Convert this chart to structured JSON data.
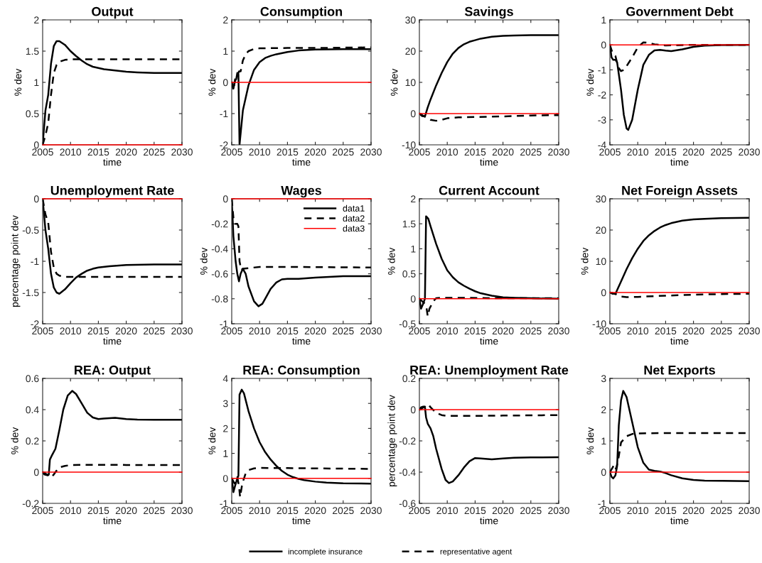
{
  "chart_data": [
    {
      "type": "line",
      "title": "Output",
      "xlabel": "time",
      "ylabel": "% dev",
      "xlim": [
        2005,
        2030
      ],
      "xticks": [
        2005,
        2010,
        2015,
        2020,
        2025,
        2030
      ],
      "ylim": [
        0,
        2
      ],
      "yticks": [
        0,
        0.5,
        1,
        1.5,
        2
      ],
      "series": [
        {
          "color": "#000000",
          "line_style": "solid",
          "x": [
            2005,
            2005.5,
            2006,
            2006.5,
            2007,
            2007.5,
            2008,
            2009,
            2010,
            2011,
            2012,
            2013,
            2014,
            2015,
            2016,
            2018,
            2020,
            2022,
            2025,
            2030
          ],
          "values": [
            0,
            0.55,
            0.8,
            1.3,
            1.58,
            1.66,
            1.66,
            1.6,
            1.5,
            1.42,
            1.35,
            1.29,
            1.25,
            1.23,
            1.21,
            1.19,
            1.17,
            1.16,
            1.15,
            1.15
          ]
        },
        {
          "color": "#000000",
          "line_style": "dashed",
          "x": [
            2005,
            2005.5,
            2006,
            2006.5,
            2007,
            2007.5,
            2008,
            2009,
            2010,
            2020,
            2030
          ],
          "values": [
            0,
            0.15,
            0.35,
            0.8,
            1.15,
            1.28,
            1.33,
            1.36,
            1.37,
            1.37,
            1.37
          ]
        },
        {
          "color": "#ff0000",
          "line_style": "solid",
          "x": [
            2005,
            2030
          ],
          "values": [
            0,
            0
          ]
        }
      ]
    },
    {
      "type": "line",
      "title": "Consumption",
      "xlabel": "time",
      "ylabel": "% dev",
      "xlim": [
        2005,
        2030
      ],
      "xticks": [
        2005,
        2010,
        2015,
        2020,
        2025,
        2030
      ],
      "ylim": [
        -2,
        2
      ],
      "yticks": [
        -2,
        -1,
        0,
        1,
        2
      ],
      "series": [
        {
          "color": "#000000",
          "line_style": "solid",
          "x": [
            2005,
            2005.3,
            2005.6,
            2005.8,
            2006,
            2006.2,
            2006.4,
            2007,
            2008,
            2009,
            2010,
            2011,
            2012,
            2013,
            2015,
            2017,
            2020,
            2025,
            2030
          ],
          "values": [
            0,
            -0.2,
            0.05,
            0.1,
            0.3,
            0.25,
            -2,
            -0.9,
            -0.1,
            0.4,
            0.65,
            0.78,
            0.85,
            0.9,
            0.97,
            1.02,
            1.05,
            1.06,
            1.06
          ]
        },
        {
          "color": "#000000",
          "line_style": "dashed",
          "x": [
            2005,
            2005.3,
            2005.6,
            2006,
            2006.3,
            2006.6,
            2007,
            2007.5,
            2008,
            2009,
            2010,
            2015,
            2020,
            2030
          ],
          "values": [
            0,
            -0.25,
            0.1,
            0.2,
            0.35,
            0.35,
            0.7,
            0.9,
            1.0,
            1.07,
            1.09,
            1.1,
            1.1,
            1.12
          ]
        },
        {
          "color": "#ff0000",
          "line_style": "solid",
          "x": [
            2005,
            2030
          ],
          "values": [
            0,
            0
          ]
        }
      ]
    },
    {
      "type": "line",
      "title": "Savings",
      "xlabel": "time",
      "ylabel": "% dev",
      "xlim": [
        2005,
        2030
      ],
      "xticks": [
        2005,
        2010,
        2015,
        2020,
        2025,
        2030
      ],
      "ylim": [
        -10,
        30
      ],
      "yticks": [
        -10,
        0,
        10,
        20,
        30
      ],
      "series": [
        {
          "color": "#000000",
          "line_style": "solid",
          "x": [
            2005,
            2005.5,
            2006,
            2006.5,
            2007,
            2008,
            2009,
            2010,
            2011,
            2012,
            2013,
            2014,
            2015,
            2016,
            2018,
            2020,
            2022,
            2025,
            2030
          ],
          "values": [
            0,
            -0.8,
            -0.9,
            2,
            4.5,
            9,
            13,
            16.5,
            19.2,
            21,
            22.2,
            23,
            23.5,
            24,
            24.6,
            24.9,
            25,
            25.1,
            25.1
          ]
        },
        {
          "color": "#000000",
          "line_style": "dashed",
          "x": [
            2005,
            2006,
            2007,
            2008,
            2009,
            2010,
            2012,
            2015,
            2020,
            2025,
            2030
          ],
          "values": [
            0,
            -1,
            -2,
            -2.3,
            -2,
            -1.5,
            -1.2,
            -1.1,
            -0.9,
            -0.6,
            -0.5
          ]
        },
        {
          "color": "#ff0000",
          "line_style": "solid",
          "x": [
            2005,
            2030
          ],
          "values": [
            0,
            0
          ]
        }
      ]
    },
    {
      "type": "line",
      "title": "Government Debt",
      "xlabel": "time",
      "ylabel": "% dev",
      "xlim": [
        2005,
        2030
      ],
      "xticks": [
        2005,
        2010,
        2015,
        2020,
        2025,
        2030
      ],
      "ylim": [
        -4,
        1
      ],
      "yticks": [
        -4,
        -3,
        -2,
        -1,
        0,
        1
      ],
      "series": [
        {
          "color": "#000000",
          "line_style": "solid",
          "x": [
            2005,
            2005.3,
            2005.6,
            2006,
            2006.3,
            2007,
            2007.5,
            2008,
            2008.3,
            2009,
            2010,
            2011,
            2012,
            2013,
            2014,
            2015,
            2016,
            2018,
            2020,
            2022,
            2025,
            2030
          ],
          "values": [
            0,
            -0.5,
            -0.6,
            -0.6,
            -0.7,
            -1.8,
            -2.8,
            -3.35,
            -3.4,
            -3.0,
            -1.8,
            -0.8,
            -0.4,
            -0.22,
            -0.2,
            -0.23,
            -0.25,
            -0.18,
            -0.08,
            -0.03,
            -0.01,
            0
          ]
        },
        {
          "color": "#000000",
          "line_style": "dashed",
          "x": [
            2005,
            2005.5,
            2006,
            2006.5,
            2007,
            2007.5,
            2008,
            2009,
            2010,
            2011,
            2012,
            2013,
            2015,
            2020,
            2030
          ],
          "values": [
            0,
            -0.35,
            -0.45,
            -0.9,
            -1.05,
            -1.0,
            -0.85,
            -0.5,
            -0.1,
            0.1,
            0.08,
            0.02,
            -0.02,
            0,
            0
          ]
        },
        {
          "color": "#ff0000",
          "line_style": "solid",
          "x": [
            2005,
            2030
          ],
          "values": [
            0,
            0
          ]
        }
      ]
    },
    {
      "type": "line",
      "title": "Unemployment Rate",
      "xlabel": "time",
      "ylabel": "percentage point dev",
      "xlim": [
        2005,
        2030
      ],
      "xticks": [
        2005,
        2010,
        2015,
        2020,
        2025,
        2030
      ],
      "ylim": [
        -2,
        0
      ],
      "yticks": [
        -2,
        -1.5,
        -1,
        -0.5,
        0
      ],
      "series": [
        {
          "color": "#000000",
          "line_style": "solid",
          "x": [
            2005,
            2005.5,
            2006,
            2006.5,
            2007,
            2007.5,
            2008,
            2009,
            2010,
            2011,
            2012,
            2013,
            2014,
            2015,
            2017,
            2020,
            2025,
            2030
          ],
          "values": [
            0,
            -0.5,
            -0.8,
            -1.2,
            -1.42,
            -1.5,
            -1.52,
            -1.45,
            -1.35,
            -1.26,
            -1.2,
            -1.15,
            -1.12,
            -1.1,
            -1.08,
            -1.06,
            -1.05,
            -1.05
          ]
        },
        {
          "color": "#000000",
          "line_style": "dashed",
          "x": [
            2005,
            2005.5,
            2006,
            2006.5,
            2007,
            2007.5,
            2008,
            2009,
            2010,
            2030
          ],
          "values": [
            0,
            -0.25,
            -0.38,
            -0.85,
            -1.1,
            -1.2,
            -1.23,
            -1.25,
            -1.25,
            -1.25
          ]
        },
        {
          "color": "#ff0000",
          "line_style": "solid",
          "x": [
            2005,
            2030
          ],
          "values": [
            0,
            0
          ]
        }
      ]
    },
    {
      "type": "line",
      "title": "Wages",
      "xlabel": "time",
      "ylabel": "% dev",
      "xlim": [
        2005,
        2030
      ],
      "xticks": [
        2005,
        2010,
        2015,
        2020,
        2025,
        2030
      ],
      "ylim": [
        -1,
        0
      ],
      "yticks": [
        -1,
        -0.8,
        -0.6,
        -0.4,
        -0.2,
        0
      ],
      "legend": "top right",
      "series": [
        {
          "name": "data1",
          "color": "#000000",
          "line_style": "solid",
          "x": [
            2005,
            2005.3,
            2005.7,
            2006,
            2006.3,
            2006.6,
            2007,
            2007.5,
            2008,
            2009,
            2009.8,
            2010.5,
            2011,
            2012,
            2013,
            2014,
            2015,
            2017,
            2020,
            2025,
            2030
          ],
          "values": [
            0,
            -0.3,
            -0.5,
            -0.6,
            -0.66,
            -0.6,
            -0.56,
            -0.6,
            -0.7,
            -0.82,
            -0.86,
            -0.84,
            -0.8,
            -0.72,
            -0.67,
            -0.645,
            -0.64,
            -0.64,
            -0.63,
            -0.62,
            -0.62
          ]
        },
        {
          "name": "data2",
          "color": "#000000",
          "line_style": "dashed",
          "x": [
            2005,
            2005.3,
            2005.6,
            2006,
            2006.2,
            2006.4,
            2006.7,
            2007,
            2008,
            2010,
            2015,
            2030
          ],
          "values": [
            0,
            -0.15,
            -0.2,
            -0.2,
            -0.22,
            -0.5,
            -0.57,
            -0.56,
            -0.555,
            -0.545,
            -0.545,
            -0.55
          ]
        },
        {
          "name": "data3",
          "color": "#ff0000",
          "line_style": "solid",
          "x": [
            2005,
            2030
          ],
          "values": [
            0,
            0
          ]
        }
      ]
    },
    {
      "type": "line",
      "title": "Current Account",
      "xlabel": "time",
      "ylabel": "% dev",
      "xlim": [
        2005,
        2030
      ],
      "xticks": [
        2005,
        2010,
        2015,
        2020,
        2025,
        2030
      ],
      "ylim": [
        -0.5,
        2
      ],
      "yticks": [
        -0.5,
        0,
        0.5,
        1,
        1.5,
        2
      ],
      "series": [
        {
          "color": "#000000",
          "line_style": "solid",
          "x": [
            2005,
            2005.3,
            2005.6,
            2006,
            2006.2,
            2006.6,
            2007,
            2008,
            2009,
            2010,
            2011,
            2012,
            2013,
            2014,
            2015,
            2016,
            2018,
            2020,
            2022,
            2025,
            2030
          ],
          "values": [
            0,
            -0.2,
            -0.12,
            0,
            1.65,
            1.6,
            1.45,
            1.1,
            0.8,
            0.57,
            0.43,
            0.33,
            0.26,
            0.2,
            0.15,
            0.11,
            0.06,
            0.03,
            0.02,
            0.01,
            0
          ]
        },
        {
          "color": "#000000",
          "line_style": "dashed",
          "x": [
            2005,
            2005.5,
            2006,
            2006.3,
            2006.5,
            2006.8,
            2007.5,
            2008,
            2009,
            2012,
            2020,
            2030
          ],
          "values": [
            0,
            -0.05,
            -0.1,
            -0.2,
            -0.35,
            -0.2,
            -0.05,
            0.01,
            0.02,
            0.02,
            0.01,
            0.01
          ]
        },
        {
          "color": "#ff0000",
          "line_style": "solid",
          "x": [
            2005,
            2030
          ],
          "values": [
            0,
            0
          ]
        }
      ]
    },
    {
      "type": "line",
      "title": "Net Foreign Assets",
      "xlabel": "time",
      "ylabel": "% dev",
      "xlim": [
        2005,
        2030
      ],
      "xticks": [
        2005,
        2010,
        2015,
        2020,
        2025,
        2030
      ],
      "ylim": [
        -10,
        30
      ],
      "yticks": [
        -10,
        0,
        10,
        20,
        30
      ],
      "series": [
        {
          "color": "#000000",
          "line_style": "solid",
          "x": [
            2005,
            2005.5,
            2006,
            2007,
            2008,
            2009,
            2010,
            2011,
            2012,
            2013,
            2014,
            2015,
            2016,
            2018,
            2020,
            2022,
            2025,
            2030
          ],
          "values": [
            0,
            -0.4,
            -0.4,
            3.5,
            7.5,
            11,
            14,
            16.5,
            18.3,
            19.7,
            20.8,
            21.6,
            22.2,
            23,
            23.4,
            23.6,
            23.8,
            23.9
          ]
        },
        {
          "color": "#000000",
          "line_style": "dashed",
          "x": [
            2005,
            2006,
            2007,
            2008,
            2010,
            2015,
            2020,
            2025,
            2030
          ],
          "values": [
            0,
            -0.5,
            -1.3,
            -1.5,
            -1.4,
            -1.0,
            -0.7,
            -0.5,
            -0.4
          ]
        },
        {
          "color": "#ff0000",
          "line_style": "solid",
          "x": [
            2005,
            2030
          ],
          "values": [
            0,
            0
          ]
        }
      ]
    },
    {
      "type": "line",
      "title": "REA: Output",
      "xlabel": "time",
      "ylabel": "% dev",
      "xlim": [
        2005,
        2030
      ],
      "xticks": [
        2005,
        2010,
        2015,
        2020,
        2025,
        2030
      ],
      "ylim": [
        -0.2,
        0.6
      ],
      "yticks": [
        -0.2,
        0,
        0.2,
        0.4,
        0.6
      ],
      "series": [
        {
          "color": "#000000",
          "line_style": "solid",
          "x": [
            2005,
            2005.3,
            2005.8,
            2006.1,
            2006.3,
            2006.7,
            2007.3,
            2008,
            2008.7,
            2009.5,
            2010.3,
            2011,
            2012,
            2013,
            2014,
            2015,
            2016,
            2018,
            2020,
            2022,
            2025,
            2030
          ],
          "values": [
            0,
            -0.015,
            -0.02,
            -0.015,
            0.08,
            0.11,
            0.15,
            0.27,
            0.4,
            0.49,
            0.52,
            0.5,
            0.44,
            0.38,
            0.35,
            0.34,
            0.343,
            0.348,
            0.34,
            0.336,
            0.335,
            0.335
          ]
        },
        {
          "color": "#000000",
          "line_style": "dashed",
          "x": [
            2005,
            2005.5,
            2006,
            2006.5,
            2007,
            2007.5,
            2008,
            2009,
            2010,
            2012,
            2020,
            2030
          ],
          "values": [
            0,
            -0.01,
            -0.02,
            -0.035,
            -0.015,
            0.01,
            0.03,
            0.04,
            0.045,
            0.047,
            0.046,
            0.045
          ]
        },
        {
          "color": "#ff0000",
          "line_style": "solid",
          "x": [
            2005,
            2030
          ],
          "values": [
            0,
            0
          ]
        }
      ]
    },
    {
      "type": "line",
      "title": "REA: Consumption",
      "xlabel": "time",
      "ylabel": "% dev",
      "xlim": [
        2005,
        2030
      ],
      "xticks": [
        2005,
        2010,
        2015,
        2020,
        2025,
        2030
      ],
      "ylim": [
        -1,
        4
      ],
      "yticks": [
        -1,
        0,
        1,
        2,
        3,
        4
      ],
      "series": [
        {
          "color": "#000000",
          "line_style": "solid",
          "x": [
            2005,
            2005.3,
            2005.6,
            2006,
            2006.2,
            2006.4,
            2006.8,
            2007.2,
            2008,
            2009,
            2010,
            2011,
            2012,
            2013,
            2014,
            2015,
            2016,
            2017,
            2018,
            2020,
            2022,
            2025,
            2030
          ],
          "values": [
            0,
            -0.55,
            -0.3,
            0,
            0.1,
            3.35,
            3.55,
            3.4,
            2.7,
            2.0,
            1.45,
            1.05,
            0.75,
            0.5,
            0.3,
            0.15,
            0.05,
            -0.02,
            -0.07,
            -0.13,
            -0.17,
            -0.2,
            -0.21
          ]
        },
        {
          "color": "#000000",
          "line_style": "dashed",
          "x": [
            2005,
            2005.5,
            2006,
            2006.3,
            2006.5,
            2006.9,
            2007.5,
            2008,
            2009,
            2010,
            2015,
            2020,
            2030
          ],
          "values": [
            0,
            -0.2,
            0.05,
            -0.3,
            -0.75,
            -0.2,
            0.2,
            0.33,
            0.4,
            0.42,
            0.41,
            0.4,
            0.38
          ]
        },
        {
          "color": "#ff0000",
          "line_style": "solid",
          "x": [
            2005,
            2030
          ],
          "values": [
            0,
            0
          ]
        }
      ]
    },
    {
      "type": "line",
      "title": "REA: Unemployment Rate",
      "xlabel": "time",
      "ylabel": "percentage point dev",
      "xlim": [
        2005,
        2030
      ],
      "xticks": [
        2005,
        2010,
        2015,
        2020,
        2025,
        2030
      ],
      "ylim": [
        -0.6,
        0.2
      ],
      "yticks": [
        -0.6,
        -0.4,
        -0.2,
        0,
        0.2
      ],
      "series": [
        {
          "color": "#000000",
          "line_style": "solid",
          "x": [
            2005,
            2005.3,
            2005.7,
            2006,
            2006.2,
            2006.5,
            2007,
            2007.5,
            2008,
            2009,
            2009.7,
            2010.3,
            2011,
            2012,
            2013,
            2014,
            2015,
            2016,
            2018,
            2020,
            2022,
            2025,
            2030
          ],
          "values": [
            0,
            0.015,
            0.02,
            0.015,
            -0.05,
            -0.09,
            -0.12,
            -0.17,
            -0.25,
            -0.38,
            -0.45,
            -0.47,
            -0.46,
            -0.42,
            -0.37,
            -0.33,
            -0.31,
            -0.312,
            -0.318,
            -0.313,
            -0.308,
            -0.306,
            -0.305
          ]
        },
        {
          "color": "#000000",
          "line_style": "dashed",
          "x": [
            2005,
            2005.5,
            2006,
            2006.3,
            2006.6,
            2007,
            2008,
            2009,
            2010,
            2015,
            2020,
            2030
          ],
          "values": [
            0,
            0.01,
            0.02,
            0.03,
            0.035,
            0.015,
            -0.02,
            -0.035,
            -0.04,
            -0.04,
            -0.038,
            -0.035
          ]
        },
        {
          "color": "#ff0000",
          "line_style": "solid",
          "x": [
            2005,
            2030
          ],
          "values": [
            0,
            0
          ]
        }
      ]
    },
    {
      "type": "line",
      "title": "Net Exports",
      "xlabel": "time",
      "ylabel": "% dev",
      "xlim": [
        2005,
        2030
      ],
      "xticks": [
        2005,
        2010,
        2015,
        2020,
        2025,
        2030
      ],
      "ylim": [
        -1,
        3
      ],
      "yticks": [
        -1,
        0,
        1,
        2,
        3
      ],
      "legend": "bottom",
      "series": [
        {
          "name": "incomplete insurance",
          "color": "#000000",
          "line_style": "solid",
          "x": [
            2005,
            2005.3,
            2005.6,
            2006,
            2006.3,
            2006.6,
            2007,
            2007.4,
            2008,
            2009,
            2010,
            2011,
            2012,
            2013,
            2014,
            2015,
            2016,
            2018,
            2020,
            2022,
            2025,
            2030
          ],
          "values": [
            0,
            -0.15,
            -0.2,
            -0.1,
            0.2,
            1.5,
            2.3,
            2.6,
            2.4,
            1.6,
            0.8,
            0.3,
            0.08,
            0.04,
            0.02,
            -0.03,
            -0.1,
            -0.2,
            -0.25,
            -0.27,
            -0.28,
            -0.29
          ]
        },
        {
          "name": "representative agent",
          "color": "#000000",
          "line_style": "dashed",
          "x": [
            2005,
            2005.5,
            2005.8,
            2006.1,
            2006.5,
            2007,
            2008,
            2009,
            2010,
            2015,
            2030
          ],
          "values": [
            0,
            0.15,
            0.25,
            0.1,
            0.4,
            0.95,
            1.15,
            1.22,
            1.24,
            1.25,
            1.25
          ]
        },
        {
          "color": "#ff0000",
          "line_style": "solid",
          "x": [
            2005,
            2030
          ],
          "values": [
            0,
            0
          ]
        }
      ]
    }
  ]
}
